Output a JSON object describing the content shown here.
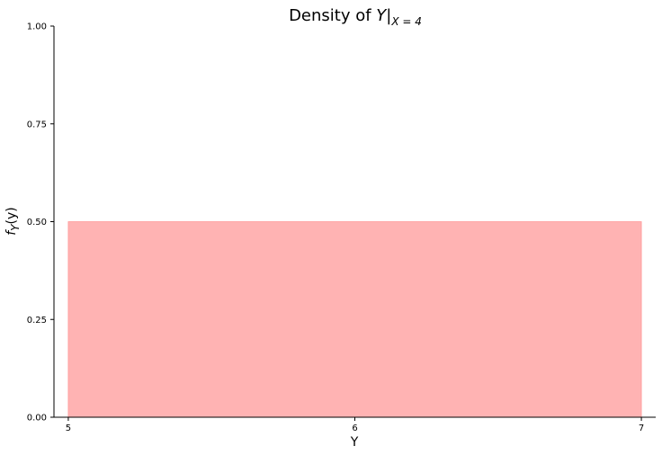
{
  "chart_data": {
    "type": "area",
    "title": {
      "prefix": "Density of ",
      "variable": "Y",
      "bar": "|",
      "subscript": "X = 4"
    },
    "xlabel": "Y",
    "ylabel": {
      "main": "f",
      "subscript": "Y",
      "suffix": "(y)"
    },
    "xlim": [
      4.95,
      7.05
    ],
    "ylim": [
      0,
      1
    ],
    "x_ticks": [
      5,
      6,
      7
    ],
    "x_tick_labels": [
      "5",
      "6",
      "7"
    ],
    "y_ticks": [
      0,
      0.25,
      0.5,
      0.75,
      1
    ],
    "y_tick_labels": [
      "0.00",
      "0.25",
      "0.50",
      "0.75",
      "1.00"
    ],
    "series": [
      {
        "x": [
          5,
          7
        ],
        "y": [
          0.5,
          0.5
        ],
        "fill_color": "#ffb3b3",
        "edge_color": "#ff9999"
      }
    ],
    "grid": false,
    "legend": "none"
  }
}
